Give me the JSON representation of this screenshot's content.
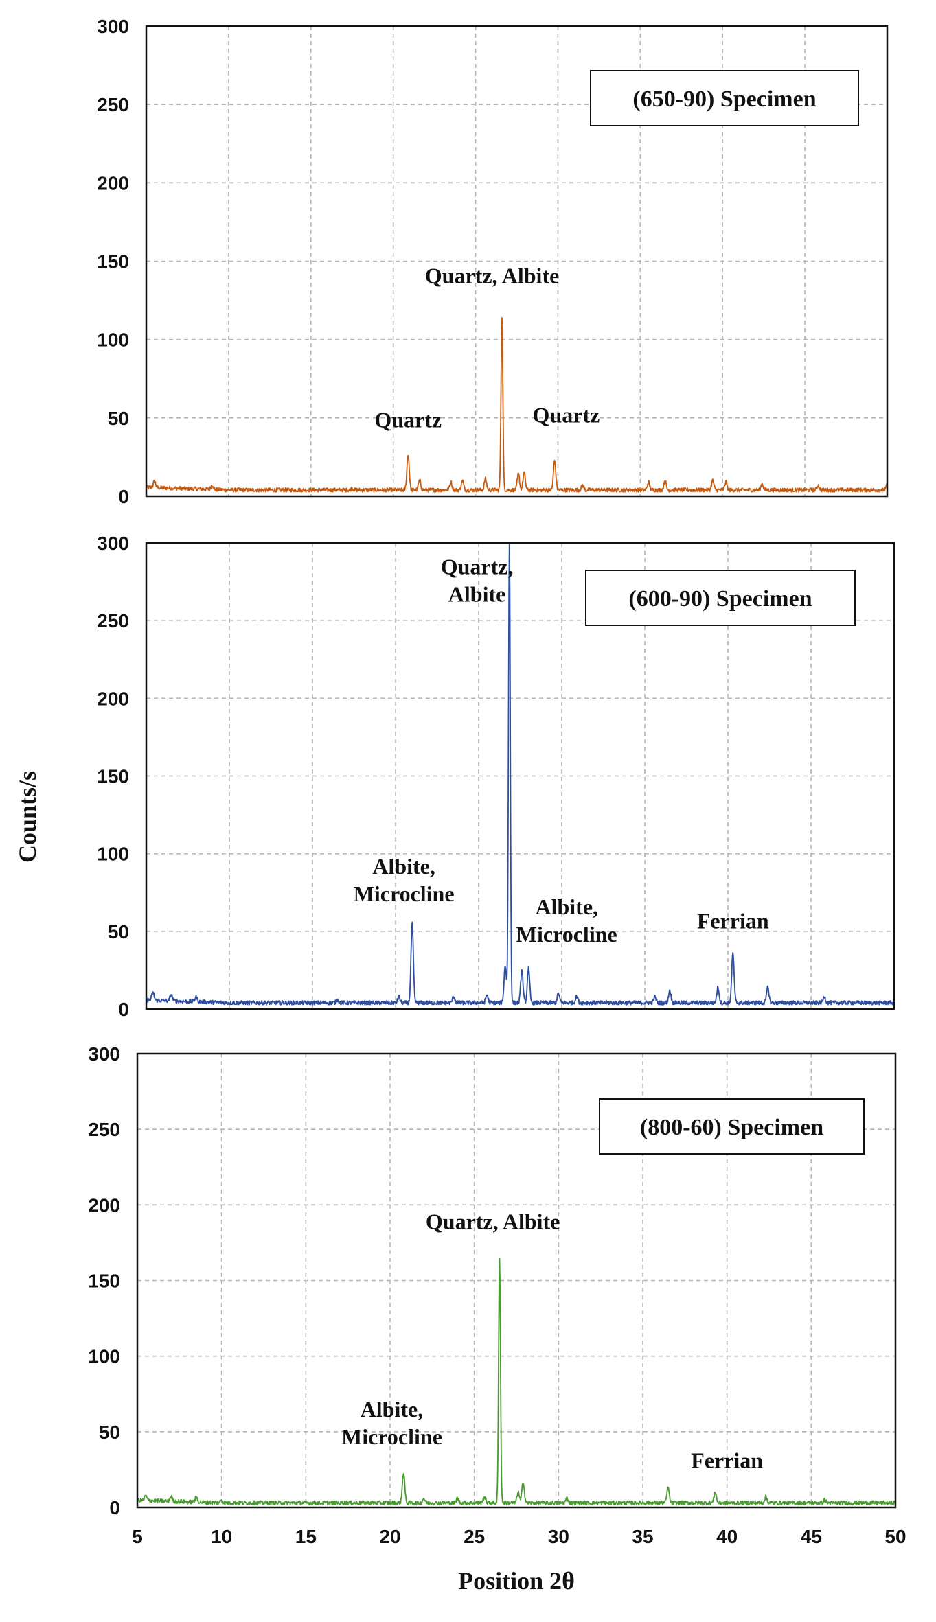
{
  "chart_data": [
    {
      "type": "line",
      "color": "#c55a11",
      "legend": "(650-90) Specimen",
      "xlim": [
        5,
        50
      ],
      "ylim": [
        0,
        300
      ],
      "yticks": [
        0,
        50,
        100,
        150,
        200,
        250,
        300
      ],
      "xticks": [
        5,
        10,
        15,
        20,
        25,
        30,
        35,
        40,
        45,
        50
      ],
      "show_x_tick_labels": false,
      "grid": true,
      "baseline": 4,
      "peaks": [
        {
          "x": 5.5,
          "y": 8
        },
        {
          "x": 9,
          "y": 7
        },
        {
          "x": 17.5,
          "y": 5
        },
        {
          "x": 20.9,
          "y": 27
        },
        {
          "x": 21.6,
          "y": 10
        },
        {
          "x": 23.5,
          "y": 9
        },
        {
          "x": 24.2,
          "y": 10
        },
        {
          "x": 25.6,
          "y": 11
        },
        {
          "x": 26.6,
          "y": 115
        },
        {
          "x": 27.6,
          "y": 14
        },
        {
          "x": 27.95,
          "y": 15
        },
        {
          "x": 29.8,
          "y": 23
        },
        {
          "x": 31.5,
          "y": 7
        },
        {
          "x": 35.5,
          "y": 9
        },
        {
          "x": 36.5,
          "y": 10
        },
        {
          "x": 39.4,
          "y": 10
        },
        {
          "x": 40.2,
          "y": 9
        },
        {
          "x": 42.4,
          "y": 8
        },
        {
          "x": 45.8,
          "y": 7
        },
        {
          "x": 50,
          "y": 7
        }
      ],
      "annotations": [
        {
          "lines": [
            "Quartz, Albite"
          ],
          "x": 26.0,
          "y": 136
        },
        {
          "lines": [
            "Quartz"
          ],
          "x": 20.9,
          "y": 44
        },
        {
          "lines": [
            "Quartz"
          ],
          "x": 30.5,
          "y": 47
        }
      ]
    },
    {
      "type": "line",
      "color": "#2f4ea0",
      "legend": "(600-90) Specimen",
      "xlim": [
        5,
        50
      ],
      "ylim": [
        0,
        300
      ],
      "yticks": [
        0,
        50,
        100,
        150,
        200,
        250,
        300
      ],
      "xticks": [
        5,
        10,
        15,
        20,
        25,
        30,
        35,
        40,
        45,
        50
      ],
      "show_x_tick_labels": false,
      "grid": true,
      "baseline": 4,
      "peaks": [
        {
          "x": 5.4,
          "y": 9
        },
        {
          "x": 6.5,
          "y": 8
        },
        {
          "x": 8,
          "y": 7
        },
        {
          "x": 16.5,
          "y": 6
        },
        {
          "x": 20.2,
          "y": 8
        },
        {
          "x": 21.0,
          "y": 55
        },
        {
          "x": 23.5,
          "y": 8
        },
        {
          "x": 25.5,
          "y": 9
        },
        {
          "x": 26.6,
          "y": 28
        },
        {
          "x": 26.85,
          "y": 300
        },
        {
          "x": 27.6,
          "y": 25
        },
        {
          "x": 28.0,
          "y": 26
        },
        {
          "x": 29.8,
          "y": 10
        },
        {
          "x": 30.9,
          "y": 8
        },
        {
          "x": 35.6,
          "y": 8
        },
        {
          "x": 36.5,
          "y": 12
        },
        {
          "x": 39.4,
          "y": 14
        },
        {
          "x": 40.3,
          "y": 36
        },
        {
          "x": 42.4,
          "y": 14
        },
        {
          "x": 45.8,
          "y": 8
        }
      ],
      "annotations": [
        {
          "lines": [
            "Quartz,",
            "Albite"
          ],
          "x": 24.9,
          "y": 280
        },
        {
          "lines": [
            "Albite,",
            "Microcline"
          ],
          "x": 20.5,
          "y": 87
        },
        {
          "lines": [
            "Albite,",
            "Microcline"
          ],
          "x": 30.3,
          "y": 61
        },
        {
          "lines": [
            "Ferrian"
          ],
          "x": 40.3,
          "y": 52
        }
      ]
    },
    {
      "type": "line",
      "color": "#4a9a32",
      "legend": "(800-60) Specimen",
      "xlim": [
        5,
        50
      ],
      "ylim": [
        0,
        300
      ],
      "yticks": [
        0,
        50,
        100,
        150,
        200,
        250,
        300
      ],
      "xticks": [
        5,
        10,
        15,
        20,
        25,
        30,
        35,
        40,
        45,
        50
      ],
      "show_x_tick_labels": true,
      "xlabel": "Position 2θ",
      "grid": true,
      "baseline": 3,
      "peaks": [
        {
          "x": 5.5,
          "y": 6
        },
        {
          "x": 7,
          "y": 6
        },
        {
          "x": 8.5,
          "y": 6
        },
        {
          "x": 10,
          "y": 5
        },
        {
          "x": 20.8,
          "y": 23
        },
        {
          "x": 22,
          "y": 6
        },
        {
          "x": 24,
          "y": 6
        },
        {
          "x": 25.6,
          "y": 7
        },
        {
          "x": 26.5,
          "y": 166
        },
        {
          "x": 27.6,
          "y": 10
        },
        {
          "x": 27.9,
          "y": 17
        },
        {
          "x": 30.5,
          "y": 6
        },
        {
          "x": 36.5,
          "y": 13
        },
        {
          "x": 39.3,
          "y": 10
        },
        {
          "x": 42.3,
          "y": 7
        },
        {
          "x": 45.8,
          "y": 5
        }
      ],
      "annotations": [
        {
          "lines": [
            "Quartz, Albite"
          ],
          "x": 26.1,
          "y": 184
        },
        {
          "lines": [
            "Albite,",
            "Microcline"
          ],
          "x": 20.1,
          "y": 60
        },
        {
          "lines": [
            "Ferrian"
          ],
          "x": 40.0,
          "y": 26
        }
      ]
    }
  ],
  "ylabel": "Counts/s"
}
